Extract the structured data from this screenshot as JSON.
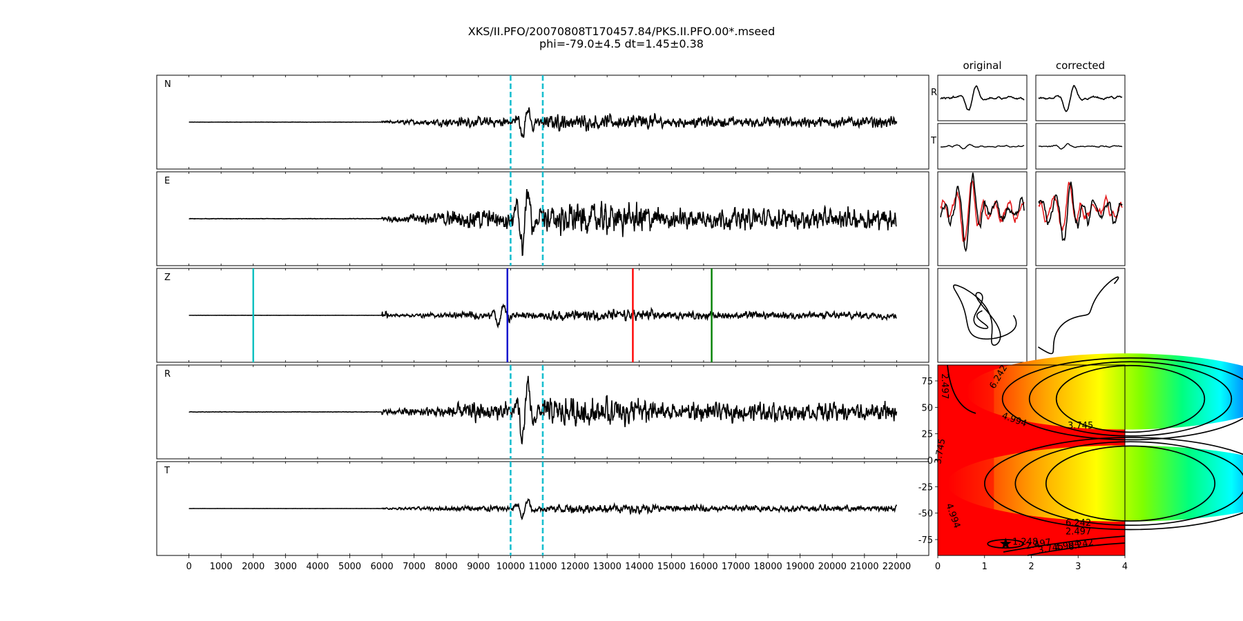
{
  "title": "XKS/II.PFO/20070808T170457.84/PKS.II.PFO.00*.mseed",
  "subtitle": "phi=-79.0±4.5 dt=1.45±0.38",
  "colors": {
    "trace": "#000000",
    "window": "#17becf",
    "pick_cyan": "#00bfbf",
    "pick_blue": "#0000cc",
    "pick_red": "#ff0000",
    "pick_green": "#008000",
    "shifted": "#e31a1c"
  },
  "chart_data": [
    {
      "type": "line",
      "name": "waveforms",
      "panel_labels": [
        "N",
        "E",
        "Z",
        "R",
        "T"
      ],
      "xlim": [
        -1000,
        23000
      ],
      "xticks": [
        0,
        1000,
        2000,
        3000,
        4000,
        5000,
        6000,
        7000,
        8000,
        9000,
        10000,
        11000,
        12000,
        13000,
        14000,
        15000,
        16000,
        17000,
        18000,
        19000,
        20000,
        21000,
        22000
      ],
      "trace_x_range": [
        0,
        22000
      ],
      "noise_onset": 6000,
      "window_lines": [
        10000,
        11000
      ],
      "window_panels": [
        "N",
        "E",
        "R",
        "T"
      ],
      "phase_picks": [
        {
          "panel": "Z",
          "x": 2000,
          "color": "cyan"
        },
        {
          "panel": "Z",
          "x": 9900,
          "color": "blue"
        },
        {
          "panel": "Z",
          "x": 13800,
          "color": "red"
        },
        {
          "panel": "Z",
          "x": 16250,
          "color": "green"
        }
      ],
      "relative_amplitude": {
        "N": 0.5,
        "E": 1.0,
        "Z": 0.35,
        "R": 0.9,
        "T": 0.3
      }
    },
    {
      "type": "line",
      "name": "particle-panels",
      "column_titles": [
        "original",
        "corrected"
      ],
      "row_labels": [
        "R",
        "T"
      ]
    },
    {
      "type": "heatmap",
      "name": "error-surface",
      "xlim": [
        0,
        4
      ],
      "ylim": [
        -90,
        90
      ],
      "xticks": [
        0,
        1,
        2,
        3,
        4
      ],
      "yticks": [
        75,
        50,
        25,
        0,
        -25,
        -50,
        -75
      ],
      "colormap": "gist_rainbow reversed (red = low, magenta = high)",
      "contour_labels": [
        "2.497",
        "6.242",
        "4.994",
        "3.745",
        "3.745",
        "4.994",
        "6.242",
        "2.497",
        "1.248",
        "2.497",
        "3.745",
        "4.994",
        "6.242"
      ],
      "best": {
        "dt": 1.45,
        "phi": -79.0
      }
    }
  ]
}
